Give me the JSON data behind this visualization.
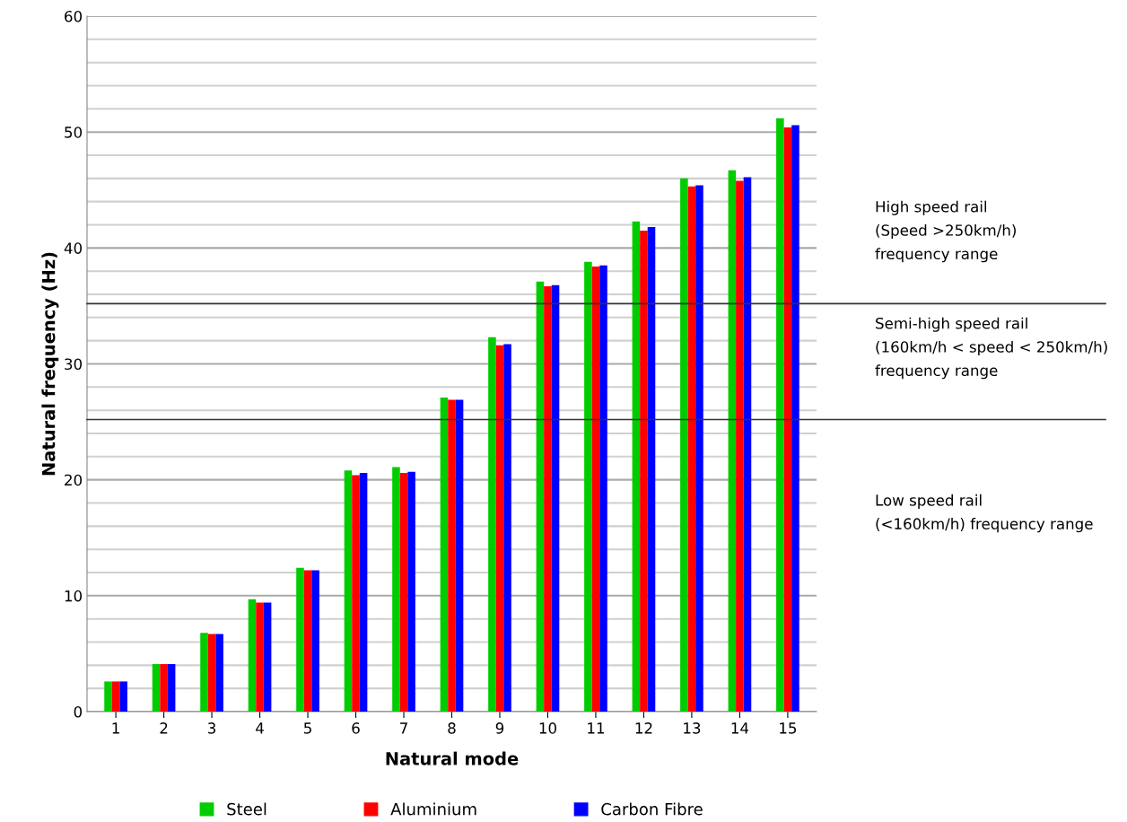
{
  "chart_data": {
    "type": "bar",
    "xlabel": "Natural mode",
    "ylabel": "Natural frequency (Hz)",
    "categories": [
      "1",
      "2",
      "3",
      "4",
      "5",
      "6",
      "7",
      "8",
      "9",
      "10",
      "11",
      "12",
      "13",
      "14",
      "15"
    ],
    "series": [
      {
        "name": "Steel",
        "color": "#00cc00",
        "values": [
          2.6,
          4.1,
          6.8,
          9.7,
          12.4,
          20.8,
          21.1,
          27.1,
          32.3,
          37.1,
          38.8,
          42.3,
          46.0,
          46.7,
          51.2
        ]
      },
      {
        "name": "Aluminium",
        "color": "#ff0000",
        "values": [
          2.6,
          4.1,
          6.7,
          9.4,
          12.2,
          20.4,
          20.6,
          26.9,
          31.6,
          36.7,
          38.4,
          41.5,
          45.3,
          45.8,
          50.4
        ]
      },
      {
        "name": "Carbon Fibre",
        "color": "#0000ff",
        "values": [
          2.6,
          4.1,
          6.7,
          9.4,
          12.2,
          20.6,
          20.7,
          26.9,
          31.7,
          36.8,
          38.5,
          41.8,
          45.4,
          46.1,
          50.6
        ]
      }
    ],
    "ylim": [
      0,
      60
    ],
    "yticks": [
      0,
      {
        "value": 2,
        "label": null
      },
      {
        "value": 4,
        "label": null
      },
      {
        "value": 6,
        "label": null
      },
      {
        "value": 8,
        "label": null
      },
      10,
      {
        "value": 12,
        "label": null
      },
      {
        "value": 14,
        "label": null
      },
      {
        "value": 16,
        "label": null
      },
      {
        "value": 18,
        "label": null
      },
      20,
      {
        "value": 22,
        "label": null
      },
      {
        "value": 24,
        "label": null
      },
      {
        "value": 26,
        "label": null
      },
      {
        "value": 28,
        "label": null
      },
      30,
      {
        "value": 32,
        "label": null
      },
      {
        "value": 34,
        "label": null
      },
      {
        "value": 36,
        "label": null
      },
      {
        "value": 38,
        "label": null
      },
      40,
      {
        "value": 42,
        "label": null
      },
      {
        "value": 44,
        "label": null
      },
      {
        "value": 46,
        "label": null
      },
      {
        "value": 48,
        "label": null
      },
      50,
      {
        "value": 52,
        "label": null
      },
      {
        "value": 54,
        "label": null
      },
      {
        "value": 56,
        "label": null
      },
      {
        "value": 58,
        "label": null
      },
      60
    ],
    "grid": "y",
    "legend": "bottom",
    "ref_lines": [
      {
        "axis": "y",
        "value": 35.2,
        "color": "#333333"
      },
      {
        "axis": "y",
        "value": 25.2,
        "color": "#333333"
      }
    ],
    "annotations": [
      "High speed rail\n(Speed >250km/h)\nfrequency range",
      "Semi-high speed rail\n(160km/h < speed < 250km/h)\nfrequency range",
      "Low speed rail\n(<160km/h) frequency range"
    ]
  }
}
